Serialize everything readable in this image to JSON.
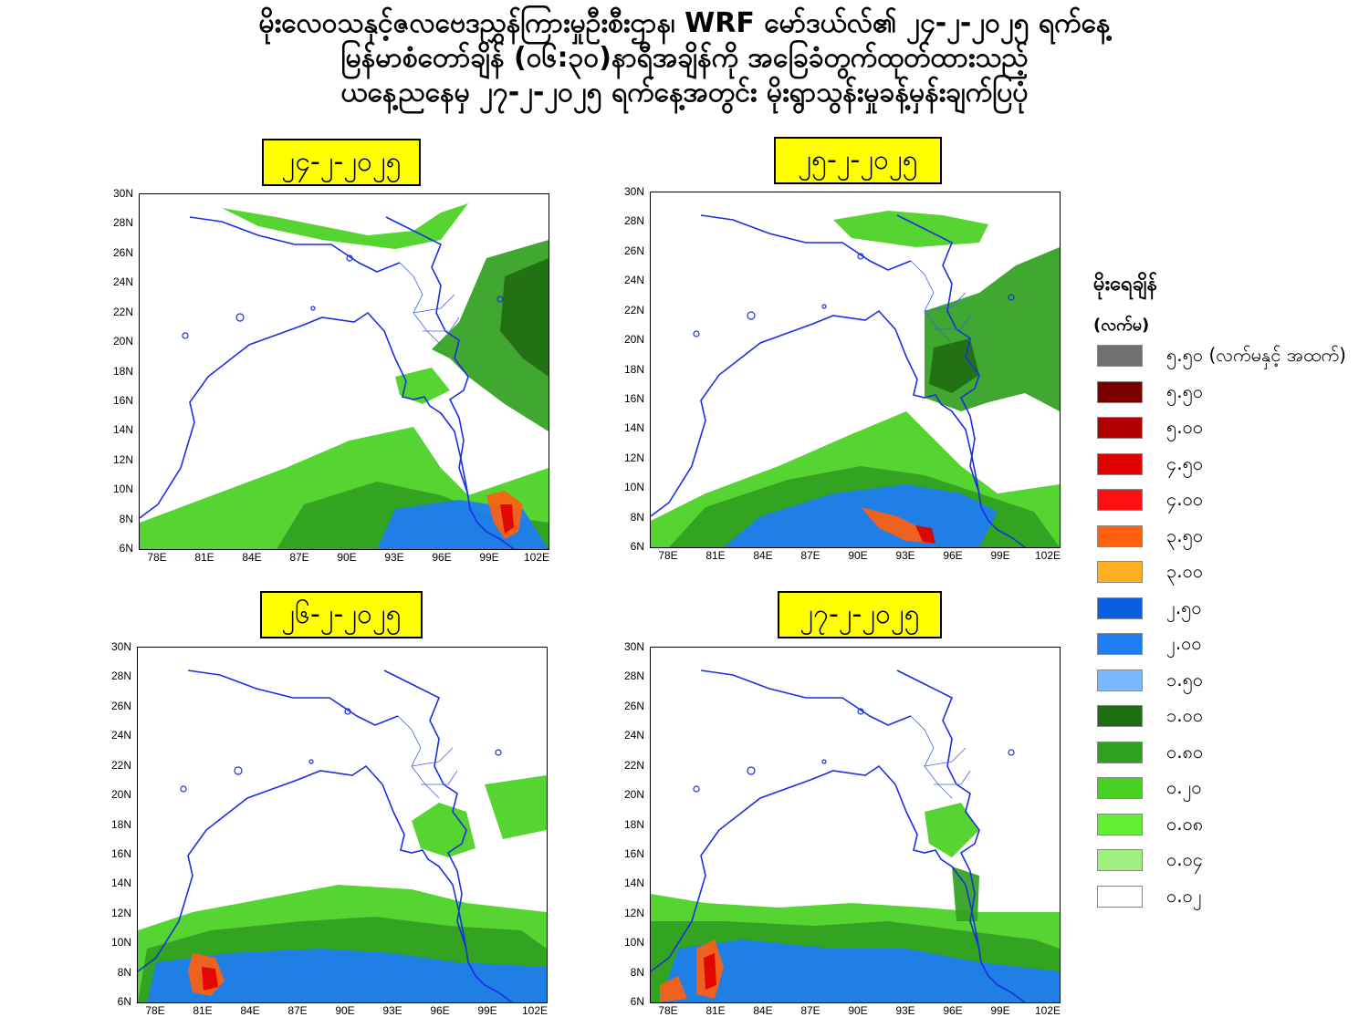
{
  "title_lines": [
    "မိုးလေဝသနှင့်ဇလဗေဒညွှန်ကြားမှုဦးစီးဌာန၊ WRF မော်ဒယ်လ်၏ ၂၄-၂-၂၀၂၅ ရက်နေ့",
    "မြန်မာစံတော်ချိန် (၀၆:၃၀)နာရီအချိန်ကို အခြေခံတွက်ထုတ်ထားသည့်",
    "ယနေ့ညနေမှ ၂၇-၂-၂၀၂၅ ရက်နေ့အတွင်း မိုးရွာသွန်းမှုခန့်မှန်းချက်ပြပုံ"
  ],
  "panels": [
    {
      "date": "၂၄-၂-၂၀၂၅"
    },
    {
      "date": "၂၅-၂-၂၀၂၅"
    },
    {
      "date": "၂၆-၂-၂၀၂၅"
    },
    {
      "date": "၂၇-၂-၂၀၂၅"
    }
  ],
  "axes": {
    "y_ticks": [
      "30N",
      "28N",
      "26N",
      "24N",
      "22N",
      "20N",
      "18N",
      "16N",
      "14N",
      "12N",
      "10N",
      "8N",
      "6N"
    ],
    "x_ticks": [
      "78E",
      "81E",
      "84E",
      "87E",
      "90E",
      "93E",
      "96E",
      "99E",
      "102E"
    ]
  },
  "legend": {
    "title": "မိုးရေချိန်",
    "unit": "(လက်မ)",
    "items": [
      {
        "label": "၅.၅၀ (လက်မနှင့် အထက်)",
        "color": "#707070"
      },
      {
        "label": "၅.၅၀",
        "color": "#7a0000"
      },
      {
        "label": "၅.၀၀",
        "color": "#b00000"
      },
      {
        "label": "၄.၅၀",
        "color": "#e00000"
      },
      {
        "label": "၄.၀၀",
        "color": "#ff1010"
      },
      {
        "label": "၃.၅၀",
        "color": "#ff6010"
      },
      {
        "label": "၃.၀၀",
        "color": "#ffb020"
      },
      {
        "label": "၂.၅၀",
        "color": "#0a5fe0"
      },
      {
        "label": "၂.၀၀",
        "color": "#1e7cf5"
      },
      {
        "label": "၁.၅၀",
        "color": "#7ab8ff"
      },
      {
        "label": "၁.၀၀",
        "color": "#1f6d12"
      },
      {
        "label": "၀.၈၀",
        "color": "#30a020"
      },
      {
        "label": "၀.၂၀",
        "color": "#48d020"
      },
      {
        "label": "၀.၀၈",
        "color": "#60f030"
      },
      {
        "label": "၀.၀၄",
        "color": "#a0f080"
      },
      {
        "label": "၀.၀၂",
        "color": "#ffffff"
      }
    ]
  }
}
